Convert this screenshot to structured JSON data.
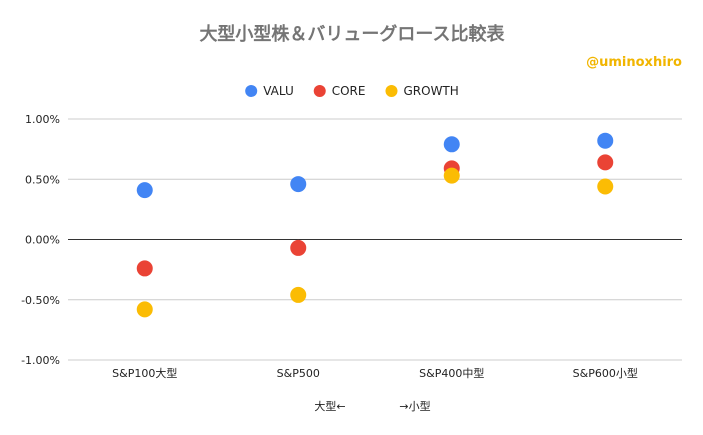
{
  "chart_data": {
    "type": "scatter",
    "title": "大型小型株＆バリューグロース比較表",
    "annotation": "@uminoxhiro",
    "categories": [
      "S&P100大型",
      "S&P500",
      "S&P400中型",
      "S&P600小型"
    ],
    "series": [
      {
        "name": "VALU",
        "color": "#4285f4",
        "values": [
          0.41,
          0.46,
          0.79,
          0.82
        ]
      },
      {
        "name": "CORE",
        "color": "#ea4335",
        "values": [
          -0.24,
          -0.07,
          0.59,
          0.64
        ]
      },
      {
        "name": "GROWTH",
        "color": "#fbbc04",
        "values": [
          -0.58,
          -0.46,
          0.53,
          0.44
        ]
      }
    ],
    "ylim": [
      -1.0,
      1.0
    ],
    "yticks": [
      1.0,
      0.5,
      0.0,
      -0.5,
      -1.0
    ],
    "ytick_labels": [
      "1.00%",
      "0.50%",
      "0.00%",
      "-0.50%",
      "-1.00%"
    ],
    "xlabel_left": "大型←",
    "xlabel_right": "→小型",
    "legend_position": "top-center",
    "grid": true
  }
}
